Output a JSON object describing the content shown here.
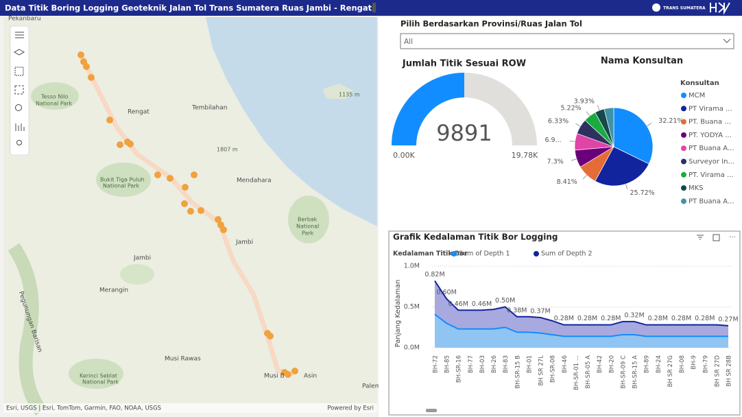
{
  "header": {
    "title": "Data Titik Boring Logging Geoteknik Jalan Tol Trans Sumatera Ruas Jambi - Rengat",
    "brand": "TRANS SUMATERA"
  },
  "map": {
    "labels": [
      "Pekanbaru",
      "Tesso Nilo",
      "National Park",
      "Rengat",
      "Tembilahan",
      "1807 m",
      "Bukit Tiga Puluh",
      "National Park",
      "Mendahara",
      "Berbak",
      "National",
      "Park",
      "Jambi",
      "Jambi",
      "Merangin",
      "Pegunungan Barisan",
      "Musi Rawas",
      "Kerinci Seblat",
      "National Park",
      "Musi B",
      "Asin",
      "Palem",
      "1135 m"
    ],
    "attribution": "Esri, USGS | Esri, TomTom, Garmin, FAO, NOAA, USGS",
    "powered_by": "Powered by Esri"
  },
  "filter": {
    "label": "Pilih Berdasarkan Provinsi/Ruas Jalan Tol",
    "selected": "All"
  },
  "gauge": {
    "type": "gauge",
    "title": "Jumlah Titik Sesuai ROW",
    "value": 9891,
    "min": {
      "value": 0,
      "label": "0.00K"
    },
    "max": {
      "value": 19780,
      "label": "19.78K"
    },
    "color": "#118dff",
    "track_color": "#e1dfdb"
  },
  "pie": {
    "type": "pie",
    "title": "Nama Konsultan",
    "legend_title": "Konsultan",
    "categories": [
      "MCM",
      "PT Virama ...",
      "PT. Buana ...",
      "PT. YODYA ...",
      "PT Buana A...",
      "Surveyor In...",
      "PT. Virama ...",
      "MKS",
      "PT Buana A..."
    ],
    "values": [
      32.21,
      25.72,
      8.41,
      7.3,
      6.9,
      6.33,
      5.22,
      3.93,
      3.98
    ],
    "value_labels": [
      "32.21%",
      "25.72%",
      "8.41%",
      "7.3%",
      "6.9...",
      "6.33%",
      "5.22%",
      "3.93%",
      null
    ],
    "colors": [
      "#118dff",
      "#12239e",
      "#e66c37",
      "#6b007b",
      "#e044a7",
      "#2c3160",
      "#1aab40",
      "#15494a",
      "#4092a8"
    ]
  },
  "area_chart": {
    "type": "area",
    "title": "Grafik Kedalaman Titik Bor Logging",
    "legend_title": "Kedalaman Titik Bor",
    "y_label": "Panjang Kedalaman",
    "categories": [
      "BH-72",
      "BH-85",
      "BH-SR-16",
      "BH-77",
      "BH-03",
      "BH-26",
      "BH-83",
      "BH-SR-15 B",
      "BH-01",
      "BH SR 27L",
      "BH-SR-08",
      "BH-46",
      "BH-SR-01 ...",
      "BH-SR-05 A",
      "BH-42",
      "BH-20",
      "BH-SR-09 C",
      "BH-SR-15 A",
      "BH-89",
      "BH-24",
      "BH SR 27G",
      "BH-08",
      "BH-9",
      "BH-79",
      "BH SR 27D",
      "BH SR 28B"
    ],
    "ylim": [
      0,
      1000000
    ],
    "yticks": [
      {
        "value": 0,
        "label": "0.0M"
      },
      {
        "value": 500000,
        "label": "0.5M"
      },
      {
        "value": 1000000,
        "label": "1.0M"
      }
    ],
    "series": [
      {
        "name": "Sum of Depth 1",
        "color": "#118dff",
        "values": [
          410000,
          300000,
          230000,
          230000,
          230000,
          230000,
          250000,
          190000,
          190000,
          180000,
          160000,
          140000,
          140000,
          140000,
          140000,
          140000,
          160000,
          160000,
          140000,
          140000,
          140000,
          140000,
          140000,
          140000,
          140000,
          140000
        ]
      },
      {
        "name": "Sum of Depth 2",
        "color": "#12239e",
        "values": [
          820000,
          600000,
          460000,
          460000,
          460000,
          470000,
          500000,
          380000,
          380000,
          370000,
          330000,
          280000,
          280000,
          280000,
          280000,
          280000,
          320000,
          320000,
          280000,
          280000,
          280000,
          280000,
          280000,
          280000,
          280000,
          270000
        ],
        "value_labels": [
          "0.82M",
          "0.60M",
          "0.46M",
          null,
          "0.46M",
          null,
          "0.50M",
          "0.38M",
          null,
          "0.37M",
          null,
          "0.28M",
          null,
          "0.28M",
          null,
          "0.28M",
          null,
          "0.32M",
          null,
          "0.28M",
          null,
          "0.28M",
          null,
          "0.28M",
          null,
          "0.27M"
        ]
      }
    ]
  }
}
